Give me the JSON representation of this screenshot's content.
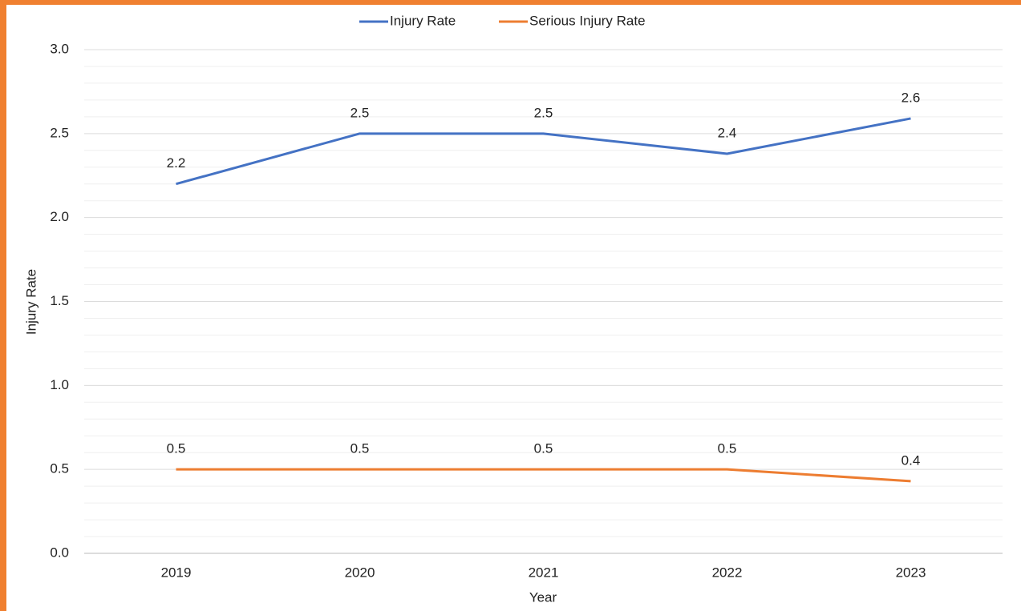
{
  "chart_data": {
    "type": "line",
    "x_label": "Year",
    "y_label": "Injury  Rate",
    "categories": [
      "2019",
      "2020",
      "2021",
      "2022",
      "2023"
    ],
    "series": [
      {
        "name": "Injury Rate",
        "color": "#4472c4",
        "values": [
          2.2,
          2.5,
          2.5,
          2.38,
          2.59
        ],
        "value_labels": [
          "2.2",
          "2.5",
          "2.5",
          "2.4",
          "2.6"
        ]
      },
      {
        "name": "Serious Injury Rate",
        "color": "#ed7d31",
        "values": [
          0.5,
          0.5,
          0.5,
          0.5,
          0.43
        ],
        "value_labels": [
          "0.5",
          "0.5",
          "0.5",
          "0.5",
          "0.4"
        ]
      }
    ],
    "ylim": [
      0,
      3
    ],
    "yticks": [
      {
        "value": 0,
        "label": "0.0"
      },
      0.5,
      {
        "value": 1,
        "label": "1.0"
      },
      1.5,
      {
        "value": 2,
        "label": "2.0"
      },
      2.5,
      {
        "value": 3,
        "label": "3.0"
      }
    ],
    "grid": true,
    "legend": "top"
  }
}
